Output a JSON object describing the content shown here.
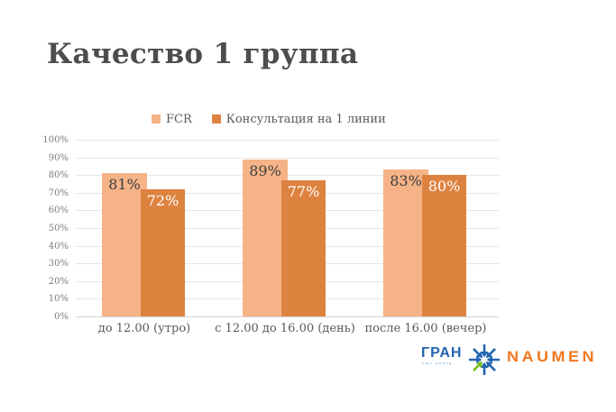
{
  "slide": {
    "title": "Качество 1 группа"
  },
  "chart_data": {
    "type": "bar",
    "title": "Качество 1 группа",
    "categories": [
      "до 12.00 (утро)",
      "с 12.00 до 16.00 (день)",
      "после 16.00 (вечер)"
    ],
    "series": [
      {
        "name": "FCR",
        "values": [
          81,
          89,
          83
        ],
        "color": "#f5b387",
        "label_color": "#3d3d3d"
      },
      {
        "name": "Консультация на 1 линии",
        "values": [
          72,
          77,
          80
        ],
        "color": "#dd8340",
        "label_color": "#ffffff"
      }
    ],
    "value_suffix": "%",
    "xlabel": "",
    "ylabel": "",
    "ylim": [
      0,
      100
    ],
    "y_tick_labels": [
      "0%",
      "10%",
      "20%",
      "30%",
      "40%",
      "50%",
      "60%",
      "70%",
      "80%",
      "90%",
      "100%"
    ],
    "grid": true,
    "legend_position": "top-center"
  },
  "footer": {
    "gran_logo": {
      "text": "ГРАН",
      "subtext": "call центр",
      "color": "#2265b0",
      "accent_green": "#76bc21",
      "icon": "converging-arrows-starburst"
    },
    "naumen_logo": {
      "text": "NAUMEN",
      "color": "#f1781f"
    }
  }
}
